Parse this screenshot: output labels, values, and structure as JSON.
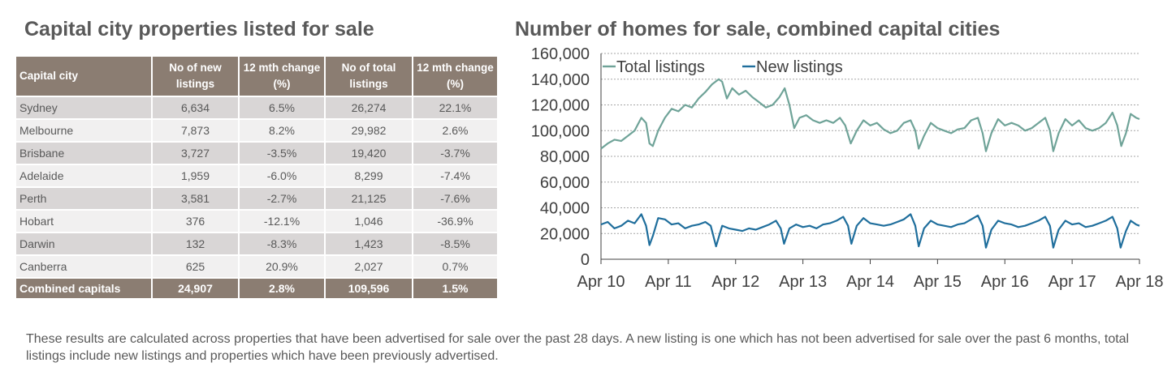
{
  "table": {
    "title": "Capital city properties listed for sale",
    "headers": [
      "Capital city",
      "No of new listings",
      "12 mth change (%)",
      "No of total listings",
      "12 mth change (%)"
    ],
    "rows": [
      {
        "city": "Sydney",
        "new_listings": "6,634",
        "new_change": "6.5%",
        "total_listings": "26,274",
        "total_change": "22.1%"
      },
      {
        "city": "Melbourne",
        "new_listings": "7,873",
        "new_change": "8.2%",
        "total_listings": "29,982",
        "total_change": "2.6%"
      },
      {
        "city": "Brisbane",
        "new_listings": "3,727",
        "new_change": "-3.5%",
        "total_listings": "19,420",
        "total_change": "-3.7%"
      },
      {
        "city": "Adelaide",
        "new_listings": "1,959",
        "new_change": "-6.0%",
        "total_listings": "8,299",
        "total_change": "-7.4%"
      },
      {
        "city": "Perth",
        "new_listings": "3,581",
        "new_change": "-2.7%",
        "total_listings": "21,125",
        "total_change": "-7.6%"
      },
      {
        "city": "Hobart",
        "new_listings": "376",
        "new_change": "-12.1%",
        "total_listings": "1,046",
        "total_change": "-36.9%"
      },
      {
        "city": "Darwin",
        "new_listings": "132",
        "new_change": "-8.3%",
        "total_listings": "1,423",
        "total_change": "-8.5%"
      },
      {
        "city": "Canberra",
        "new_listings": "625",
        "new_change": "20.9%",
        "total_listings": "2,027",
        "total_change": "0.7%"
      }
    ],
    "total": {
      "city": "Combined capitals",
      "new_listings": "24,907",
      "new_change": "2.8%",
      "total_listings": "109,596",
      "total_change": "1.5%"
    }
  },
  "chart_data": {
    "type": "line",
    "title": "Number of homes for sale, combined capital cities",
    "xlabel": "",
    "ylabel": "",
    "x_ticks": [
      "Apr 10",
      "Apr 11",
      "Apr 12",
      "Apr 13",
      "Apr 14",
      "Apr 15",
      "Apr 16",
      "Apr 17",
      "Apr 18"
    ],
    "y_ticks": [
      "0",
      "20,000",
      "40,000",
      "60,000",
      "80,000",
      "100,000",
      "120,000",
      "140,000",
      "160,000"
    ],
    "ylim": [
      0,
      160000
    ],
    "xlim": [
      2010.25,
      2018.25
    ],
    "grid": true,
    "legend_position": "top-left",
    "series": [
      {
        "name": "Total listings",
        "color": "#6fa398",
        "points": [
          [
            2010.25,
            86000
          ],
          [
            2010.35,
            90000
          ],
          [
            2010.45,
            93000
          ],
          [
            2010.55,
            92000
          ],
          [
            2010.65,
            96000
          ],
          [
            2010.75,
            100000
          ],
          [
            2010.85,
            110000
          ],
          [
            2010.92,
            106000
          ],
          [
            2010.97,
            90000
          ],
          [
            2011.02,
            88000
          ],
          [
            2011.1,
            100000
          ],
          [
            2011.2,
            110000
          ],
          [
            2011.3,
            117000
          ],
          [
            2011.4,
            115000
          ],
          [
            2011.5,
            120000
          ],
          [
            2011.6,
            118000
          ],
          [
            2011.7,
            125000
          ],
          [
            2011.8,
            130000
          ],
          [
            2011.9,
            136000
          ],
          [
            2012.0,
            140000
          ],
          [
            2012.05,
            138000
          ],
          [
            2012.12,
            125000
          ],
          [
            2012.2,
            133000
          ],
          [
            2012.3,
            128000
          ],
          [
            2012.4,
            131000
          ],
          [
            2012.5,
            126000
          ],
          [
            2012.6,
            122000
          ],
          [
            2012.7,
            118000
          ],
          [
            2012.8,
            120000
          ],
          [
            2012.9,
            126000
          ],
          [
            2012.98,
            133000
          ],
          [
            2013.05,
            120000
          ],
          [
            2013.12,
            102000
          ],
          [
            2013.2,
            110000
          ],
          [
            2013.3,
            112000
          ],
          [
            2013.4,
            108000
          ],
          [
            2013.5,
            106000
          ],
          [
            2013.6,
            108000
          ],
          [
            2013.7,
            106000
          ],
          [
            2013.8,
            110000
          ],
          [
            2013.88,
            104000
          ],
          [
            2013.96,
            90000
          ],
          [
            2014.05,
            100000
          ],
          [
            2014.15,
            108000
          ],
          [
            2014.25,
            104000
          ],
          [
            2014.35,
            106000
          ],
          [
            2014.45,
            101000
          ],
          [
            2014.55,
            98000
          ],
          [
            2014.65,
            100000
          ],
          [
            2014.75,
            106000
          ],
          [
            2014.85,
            108000
          ],
          [
            2014.92,
            100000
          ],
          [
            2014.97,
            86000
          ],
          [
            2015.05,
            96000
          ],
          [
            2015.15,
            106000
          ],
          [
            2015.25,
            102000
          ],
          [
            2015.35,
            100000
          ],
          [
            2015.45,
            98000
          ],
          [
            2015.55,
            101000
          ],
          [
            2015.65,
            102000
          ],
          [
            2015.75,
            108000
          ],
          [
            2015.85,
            110000
          ],
          [
            2015.92,
            98000
          ],
          [
            2015.97,
            84000
          ],
          [
            2016.05,
            98000
          ],
          [
            2016.15,
            109000
          ],
          [
            2016.25,
            104000
          ],
          [
            2016.35,
            106000
          ],
          [
            2016.45,
            104000
          ],
          [
            2016.55,
            100000
          ],
          [
            2016.65,
            102000
          ],
          [
            2016.75,
            106000
          ],
          [
            2016.85,
            110000
          ],
          [
            2016.92,
            100000
          ],
          [
            2016.97,
            84000
          ],
          [
            2017.05,
            98000
          ],
          [
            2017.15,
            109000
          ],
          [
            2017.25,
            104000
          ],
          [
            2017.35,
            108000
          ],
          [
            2017.45,
            102000
          ],
          [
            2017.55,
            100000
          ],
          [
            2017.65,
            102000
          ],
          [
            2017.75,
            106000
          ],
          [
            2017.85,
            114000
          ],
          [
            2017.92,
            104000
          ],
          [
            2017.98,
            88000
          ],
          [
            2018.05,
            98000
          ],
          [
            2018.12,
            113000
          ],
          [
            2018.2,
            110000
          ],
          [
            2018.25,
            109000
          ]
        ]
      },
      {
        "name": "New listings",
        "color": "#1f6e9c",
        "points": [
          [
            2010.25,
            27000
          ],
          [
            2010.35,
            29000
          ],
          [
            2010.45,
            24000
          ],
          [
            2010.55,
            26000
          ],
          [
            2010.65,
            30000
          ],
          [
            2010.75,
            28000
          ],
          [
            2010.85,
            35000
          ],
          [
            2010.92,
            26000
          ],
          [
            2010.97,
            11000
          ],
          [
            2011.02,
            18000
          ],
          [
            2011.1,
            32000
          ],
          [
            2011.2,
            31000
          ],
          [
            2011.3,
            27000
          ],
          [
            2011.4,
            28000
          ],
          [
            2011.5,
            24000
          ],
          [
            2011.6,
            26000
          ],
          [
            2011.7,
            27000
          ],
          [
            2011.8,
            29000
          ],
          [
            2011.88,
            26000
          ],
          [
            2011.96,
            10000
          ],
          [
            2012.05,
            26000
          ],
          [
            2012.15,
            24000
          ],
          [
            2012.25,
            23000
          ],
          [
            2012.35,
            22000
          ],
          [
            2012.45,
            24000
          ],
          [
            2012.55,
            23000
          ],
          [
            2012.65,
            25000
          ],
          [
            2012.75,
            27000
          ],
          [
            2012.85,
            30000
          ],
          [
            2012.92,
            24000
          ],
          [
            2012.97,
            12000
          ],
          [
            2013.05,
            24000
          ],
          [
            2013.15,
            27000
          ],
          [
            2013.25,
            25000
          ],
          [
            2013.35,
            26000
          ],
          [
            2013.45,
            24000
          ],
          [
            2013.55,
            27000
          ],
          [
            2013.65,
            28000
          ],
          [
            2013.75,
            30000
          ],
          [
            2013.85,
            33000
          ],
          [
            2013.92,
            26000
          ],
          [
            2013.97,
            12000
          ],
          [
            2014.05,
            26000
          ],
          [
            2014.15,
            32000
          ],
          [
            2014.25,
            28000
          ],
          [
            2014.35,
            27000
          ],
          [
            2014.45,
            26000
          ],
          [
            2014.55,
            27000
          ],
          [
            2014.65,
            29000
          ],
          [
            2014.75,
            31000
          ],
          [
            2014.85,
            35000
          ],
          [
            2014.92,
            26000
          ],
          [
            2014.97,
            10000
          ],
          [
            2015.05,
            24000
          ],
          [
            2015.15,
            30000
          ],
          [
            2015.25,
            27000
          ],
          [
            2015.35,
            26000
          ],
          [
            2015.45,
            25000
          ],
          [
            2015.55,
            27000
          ],
          [
            2015.65,
            28000
          ],
          [
            2015.75,
            31000
          ],
          [
            2015.85,
            34000
          ],
          [
            2015.92,
            26000
          ],
          [
            2015.97,
            9000
          ],
          [
            2016.05,
            23000
          ],
          [
            2016.15,
            30000
          ],
          [
            2016.25,
            28000
          ],
          [
            2016.35,
            27000
          ],
          [
            2016.45,
            25000
          ],
          [
            2016.55,
            26000
          ],
          [
            2016.65,
            28000
          ],
          [
            2016.75,
            30000
          ],
          [
            2016.85,
            33000
          ],
          [
            2016.92,
            26000
          ],
          [
            2016.97,
            9000
          ],
          [
            2017.05,
            23000
          ],
          [
            2017.15,
            30000
          ],
          [
            2017.25,
            27000
          ],
          [
            2017.35,
            28000
          ],
          [
            2017.45,
            25000
          ],
          [
            2017.55,
            26000
          ],
          [
            2017.65,
            28000
          ],
          [
            2017.75,
            30000
          ],
          [
            2017.85,
            33000
          ],
          [
            2017.92,
            24000
          ],
          [
            2017.97,
            9000
          ],
          [
            2018.05,
            22000
          ],
          [
            2018.12,
            30000
          ],
          [
            2018.2,
            27000
          ],
          [
            2018.25,
            26000
          ]
        ]
      }
    ]
  },
  "footnote": "These results are calculated across properties that have been advertised for sale over the past 28 days.  A new listing is one which has not been advertised for sale over the past 6 months, total listings include new listings and properties which have been previously advertised."
}
